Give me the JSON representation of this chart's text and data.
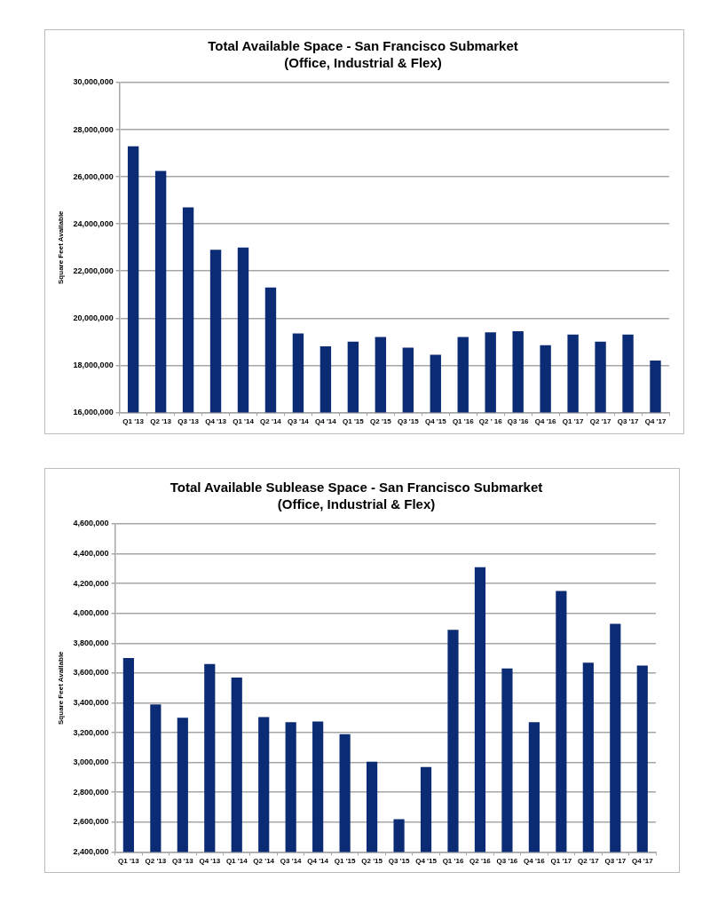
{
  "chart_data": [
    {
      "type": "bar",
      "title": "Total Available Space - San Francisco Submarket",
      "subtitle": "(Office, Industrial & Flex)",
      "ylabel": "Square Feet Available",
      "categories": [
        "Q1 '13",
        "Q2 '13",
        "Q3 '13",
        "Q4 '13",
        "Q1 '14",
        "Q2 '14",
        "Q3 '14",
        "Q4 '14",
        "Q1 '15",
        "Q2 '15",
        "Q3 '15",
        "Q4 '15",
        "Q1 '16",
        "Q2 ' 16",
        "Q3 '16",
        "Q4 '16",
        "Q1 '17",
        "Q2 '17",
        "Q3 '17",
        "Q4 '17"
      ],
      "values": [
        27300000,
        26250000,
        24700000,
        22900000,
        23000000,
        21300000,
        19350000,
        18800000,
        19000000,
        19200000,
        18750000,
        18450000,
        19200000,
        19400000,
        19450000,
        18850000,
        19300000,
        19000000,
        19300000,
        18200000
      ],
      "color": "#0b2c74",
      "ylim": [
        16000000,
        30000000
      ],
      "yticks": [
        {
          "value": 16000000,
          "label": "16,000,000"
        },
        {
          "value": 18000000,
          "label": "18,000,000"
        },
        {
          "value": 20000000,
          "label": "20,000,000"
        },
        {
          "value": 22000000,
          "label": "22,000,000"
        },
        {
          "value": 24000000,
          "label": "24,000,000"
        },
        {
          "value": 26000000,
          "label": "26,000,000"
        },
        {
          "value": 28000000,
          "label": "28,000,000"
        },
        {
          "value": 30000000,
          "label": "30,000,000"
        }
      ],
      "grid": "y"
    },
    {
      "type": "bar",
      "title": "Total Available Sublease Space - San Francisco Submarket",
      "subtitle": "(Office, Industrial & Flex)",
      "ylabel": "Square Feet Available",
      "categories": [
        "Q1 '13",
        "Q2 '13",
        "Q3 '13",
        "Q4 '13",
        "Q1 '14",
        "Q2 '14",
        "Q3 '14",
        "Q4 '14",
        "Q1 '15",
        "Q2 '15",
        "Q3 '15",
        "Q4 '15",
        "Q1 '16",
        "Q2 '16",
        "Q3 '16",
        "Q4 '16",
        "Q1 '17",
        "Q2 '17",
        "Q3 '17",
        "Q4 '17"
      ],
      "values": [
        3700000,
        3390000,
        3300000,
        3660000,
        3570000,
        3305000,
        3270000,
        3275000,
        3190000,
        3005000,
        2620000,
        2970000,
        3890000,
        4310000,
        3630000,
        3270000,
        4150000,
        3670000,
        3930000,
        3650000
      ],
      "color": "#0b2c74",
      "ylim": [
        2400000,
        4600000
      ],
      "yticks": [
        {
          "value": 2400000,
          "label": "2,400,000"
        },
        {
          "value": 2600000,
          "label": "2,600,000"
        },
        {
          "value": 2800000,
          "label": "2,800,000"
        },
        {
          "value": 3000000,
          "label": "3,000,000"
        },
        {
          "value": 3200000,
          "label": "3,200,000"
        },
        {
          "value": 3400000,
          "label": "3,400,000"
        },
        {
          "value": 3600000,
          "label": "3,600,000"
        },
        {
          "value": 3800000,
          "label": "3,800,000"
        },
        {
          "value": 4000000,
          "label": "4,000,000"
        },
        {
          "value": 4200000,
          "label": "4,200,000"
        },
        {
          "value": 4400000,
          "label": "4,400,000"
        },
        {
          "value": 4600000,
          "label": "4,600,000"
        }
      ],
      "grid": "y"
    }
  ]
}
